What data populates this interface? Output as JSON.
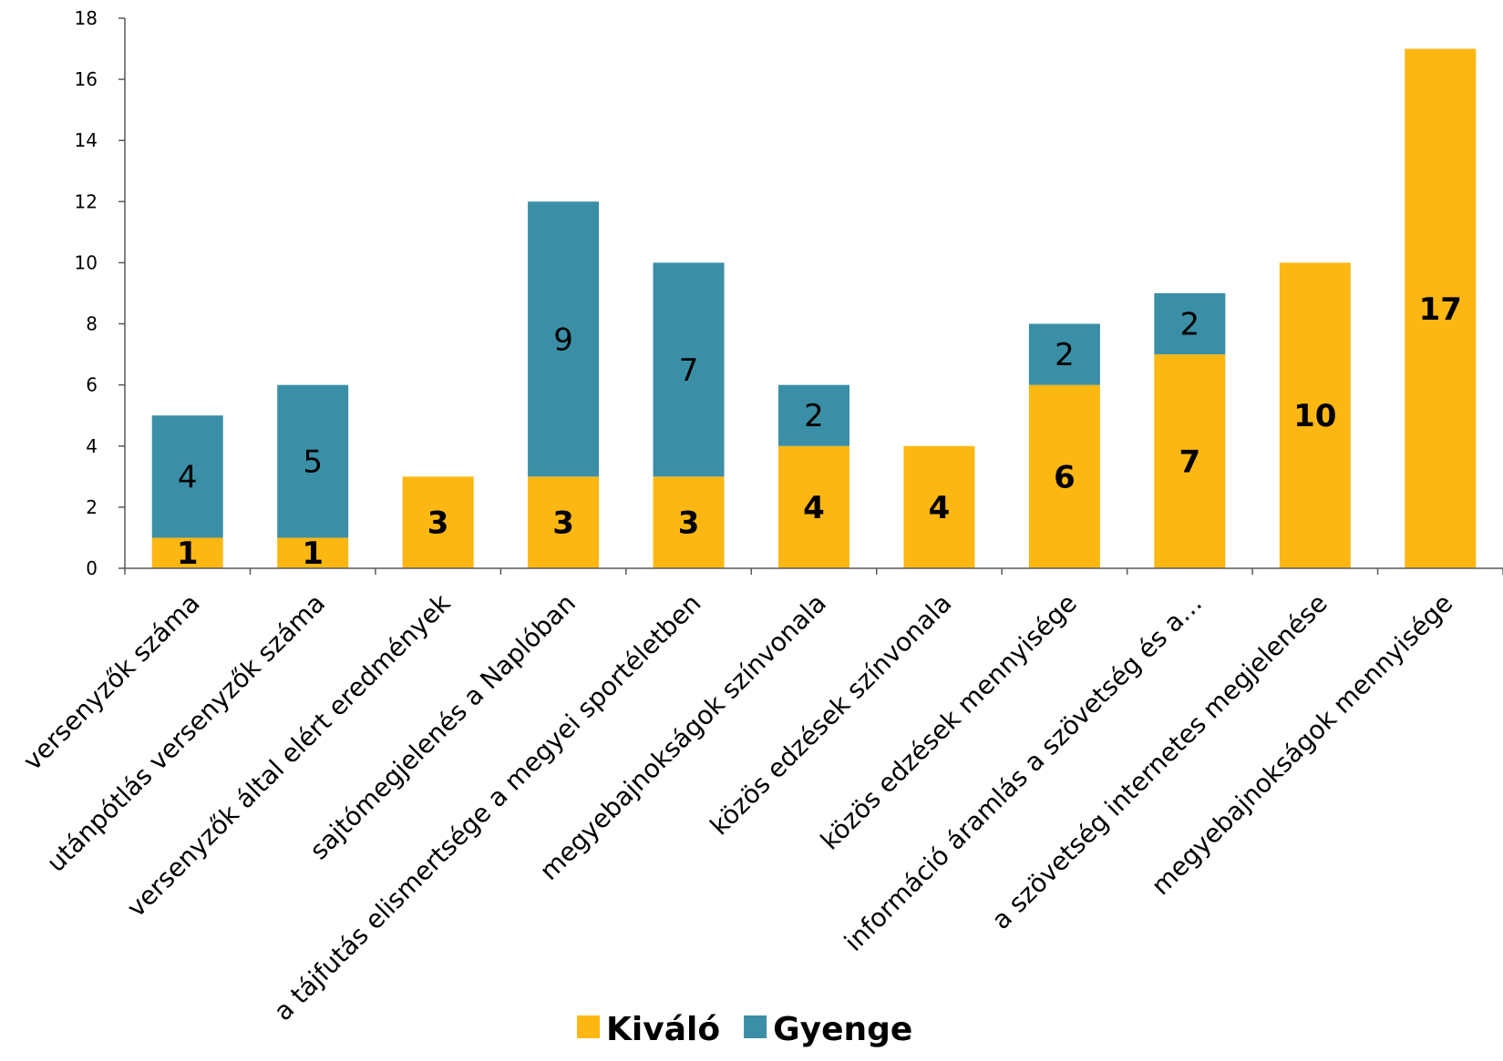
{
  "chart_data": {
    "type": "bar",
    "stacked": true,
    "categories": [
      "versenyzők száma",
      "utánpótlás versenyzők száma",
      "versenyzők által elért eredmények",
      "sajtómegjelenés a Naplóban",
      "a tájfutás elismertsége a megyei sportéletben",
      "megyebajnokságok színvonala",
      "közös edzések színvonala",
      "közös edzések mennyisége",
      "információ áramlás a szövetség és a…",
      "a szövetség internetes megjelenése",
      "megyebajnokságok mennyisége"
    ],
    "series": [
      {
        "name": "Kiváló",
        "color": "#FDB713",
        "values": [
          1,
          1,
          3,
          3,
          3,
          4,
          4,
          6,
          7,
          10,
          17
        ]
      },
      {
        "name": "Gyenge",
        "color": "#3A8FA6",
        "values": [
          4,
          5,
          0,
          9,
          7,
          2,
          0,
          2,
          2,
          0,
          0
        ]
      }
    ],
    "ylim": [
      0,
      18
    ],
    "yticks": [
      0,
      2,
      4,
      6,
      8,
      10,
      12,
      14,
      16,
      18
    ],
    "grid": false,
    "legend": "bottom",
    "title": "",
    "xlabel": "",
    "ylabel": ""
  }
}
